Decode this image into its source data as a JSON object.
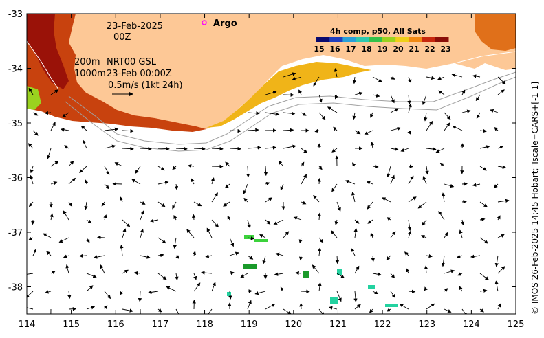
{
  "map": {
    "date_label": "23-Feb-2025",
    "time_label": "00Z",
    "argo_label": "Argo",
    "depth_200": "200m",
    "depth_1000": "1000m",
    "product_line1": "NRT00 GSL",
    "product_line2": "23-Feb 00:00Z",
    "current_scale": "0.5m/s (1kt 24h)",
    "credit": "© IMOS 26-Feb-2025 14:45 Hobart; Tscale=CARS+[-1 1]"
  },
  "colorbar": {
    "title": "4h comp, p50, All Sats",
    "ticks": [
      "15",
      "16",
      "17",
      "18",
      "19",
      "20",
      "21",
      "22",
      "23"
    ],
    "colors": [
      "#0a0a6e",
      "#1f3fbf",
      "#2aa0d8",
      "#2fc9b0",
      "#34c24a",
      "#9ad21f",
      "#f0d018",
      "#f28a14",
      "#c8280e",
      "#8a0e08"
    ]
  },
  "axes": {
    "x_ticks": [
      "114",
      "115",
      "116",
      "117",
      "118",
      "119",
      "120",
      "121",
      "122",
      "123",
      "124",
      "125"
    ],
    "y_ticks": [
      "-33",
      "-34",
      "-35",
      "-36",
      "-37",
      "-38"
    ],
    "xlim": [
      114,
      125
    ],
    "ylim": [
      -38.5,
      -33
    ]
  },
  "colors": {
    "land": "#fdc896",
    "sst_warm": "#c8420e",
    "sst_hot": "#9a1208",
    "sst_mid": "#f0b418",
    "sst_green": "#3cd23c",
    "sst_cyan": "#23d2a0",
    "argo": "#ff00ff"
  }
}
